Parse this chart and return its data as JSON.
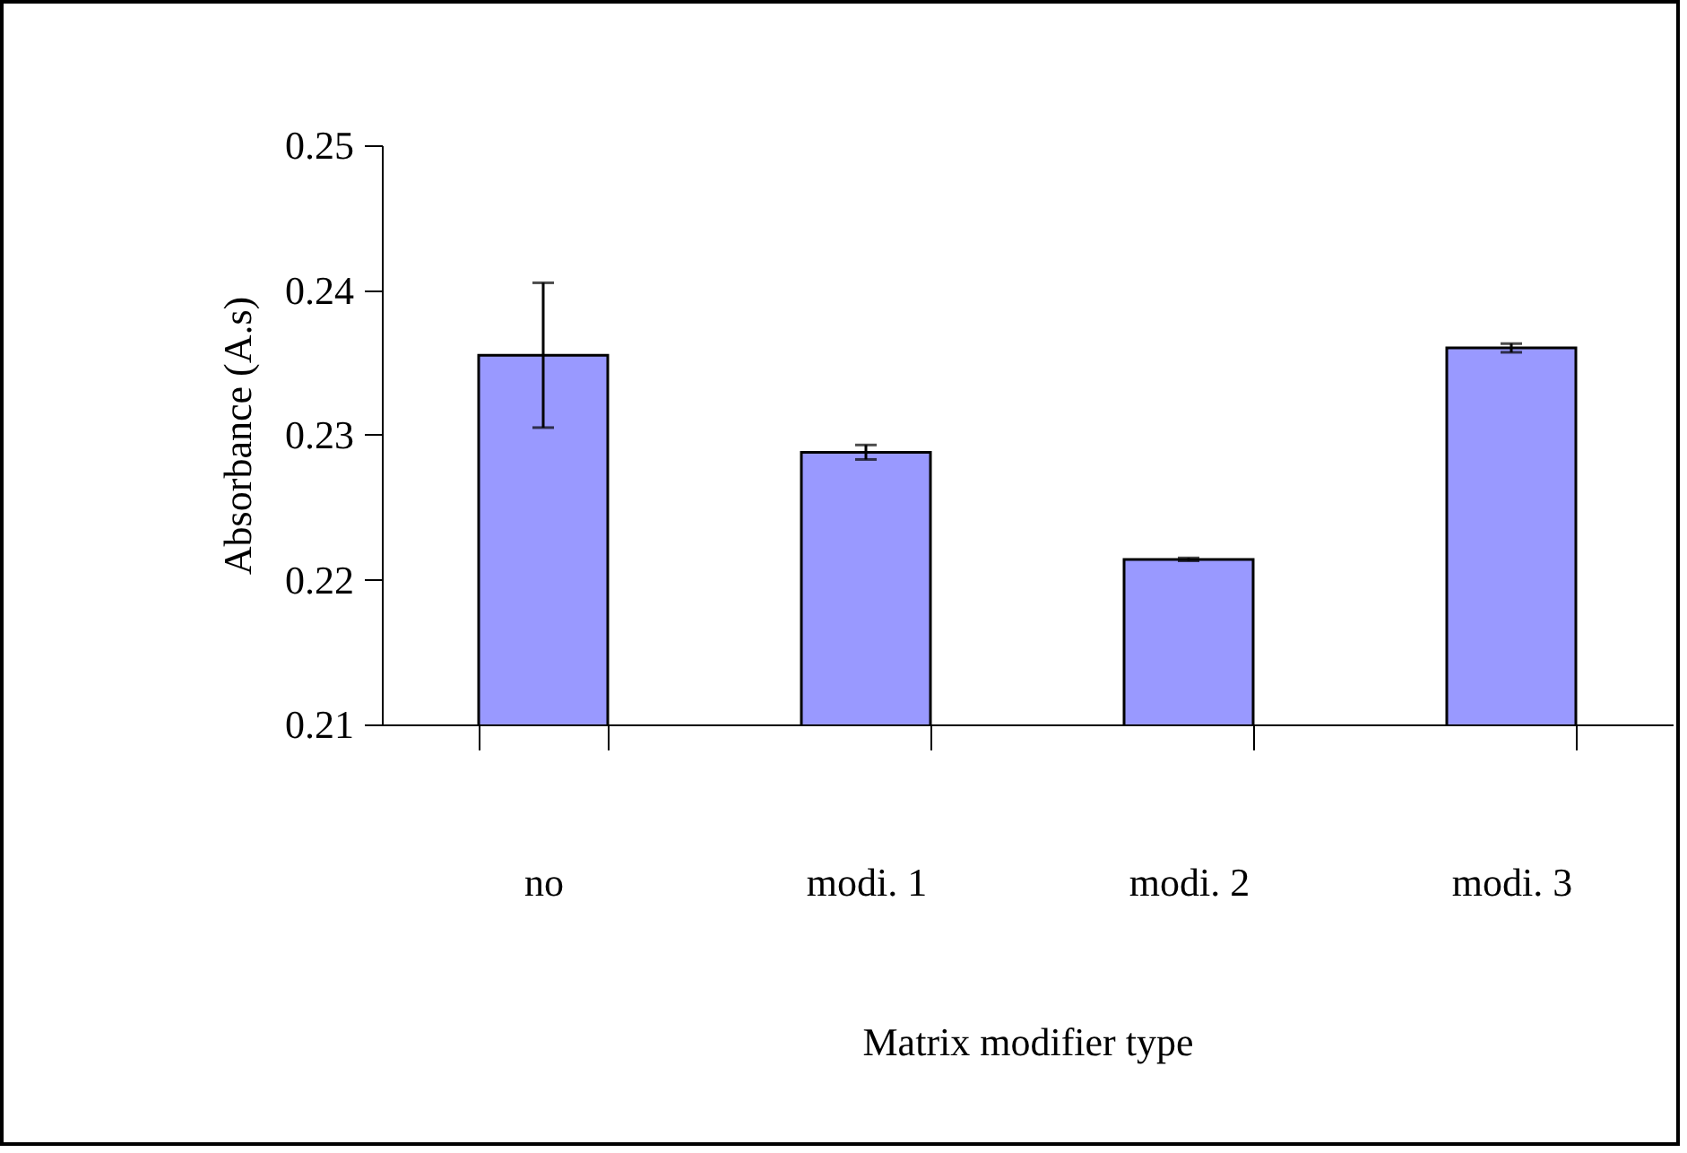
{
  "chart_data": {
    "type": "bar",
    "xlabel": "Matrix modifier type",
    "ylabel": "Absorbance (A.s)",
    "categories": [
      "no",
      "modi. 1",
      "modi. 2",
      "modi. 3"
    ],
    "values": [
      0.2355,
      0.2288,
      0.2214,
      0.236
    ],
    "errors": [
      0.005,
      0.0005,
      0.0001,
      0.0003
    ],
    "color": "#9999ff",
    "ylim": [
      0.21,
      0.25
    ],
    "yticks": [
      0.21,
      0.22,
      0.23,
      0.24,
      0.25
    ],
    "grid": false
  }
}
